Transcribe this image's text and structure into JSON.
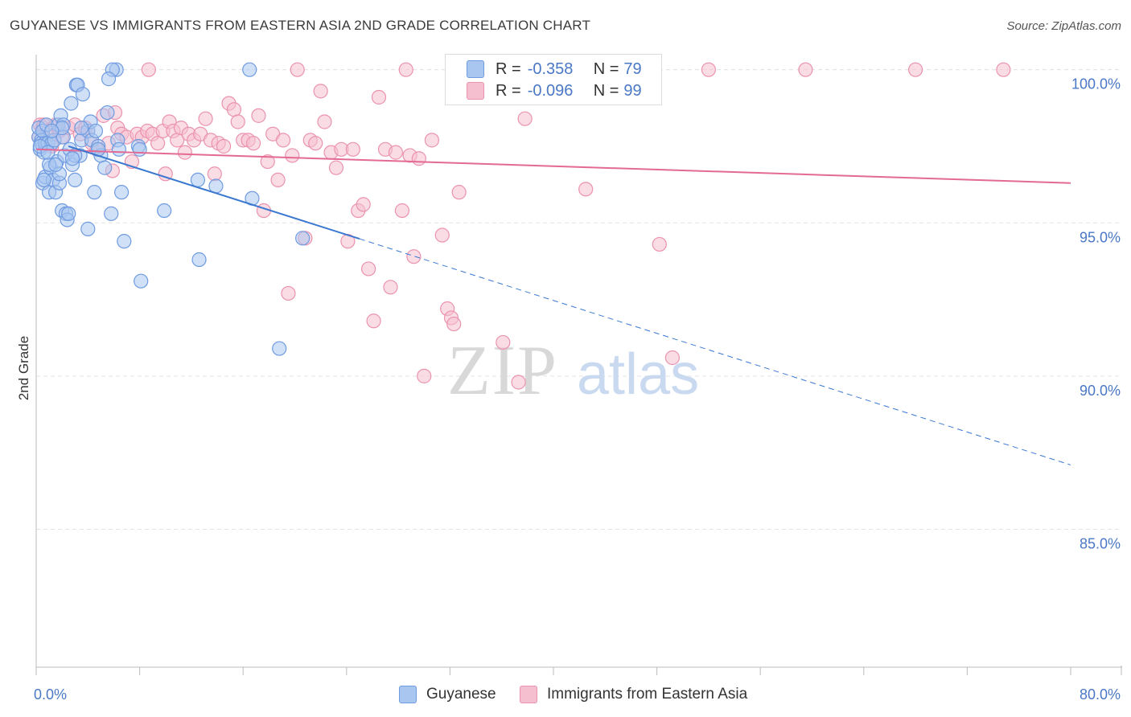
{
  "header": {
    "title": "GUYANESE VS IMMIGRANTS FROM EASTERN ASIA 2ND GRADE CORRELATION CHART",
    "source": "Source: ZipAtlas.com"
  },
  "watermark": {
    "zip": "ZIP",
    "atlas": "atlas"
  },
  "legend": {
    "rows": [
      {
        "r_label": "R =",
        "r_value": "-0.358",
        "n_label": "N =",
        "n_value": "79"
      },
      {
        "r_label": "R =",
        "r_value": "-0.096",
        "n_label": "N =",
        "n_value": "99"
      }
    ]
  },
  "bottom_legend": {
    "series1": "Guyanese",
    "series2": "Immigrants from Eastern Asia"
  },
  "colors": {
    "blue_fill": "#a9c6f0",
    "blue_stroke": "#6f9be0",
    "blue_line": "#3a78d0",
    "pink_fill": "#f6bfd0",
    "pink_stroke": "#eb93ae",
    "pink_line": "#e36a94",
    "axis_text": "#4a78c6",
    "grid": "#e3e3e3"
  },
  "chart_data": {
    "type": "scatter",
    "title": "GUYANESE VS IMMIGRANTS FROM EASTERN ASIA 2ND GRADE CORRELATION CHART",
    "xlabel": "",
    "ylabel": "2nd Grade",
    "xlim": [
      0,
      80
    ],
    "ylim": [
      80.5,
      100.7
    ],
    "x_tick_labels": [
      "0.0%",
      "80.0%"
    ],
    "y_ticks": [
      85,
      90,
      95,
      100
    ],
    "y_tick_labels": [
      "85.0%",
      "90.0%",
      "95.0%",
      "100.0%"
    ],
    "grid": true,
    "series": [
      {
        "name": "Guyanese",
        "R": -0.358,
        "N": 79,
        "trend": {
          "x0": 2.5,
          "y0": 97.5,
          "x_solid_end": 25,
          "x_dash_end": 80,
          "y_dash_end": 87.1
        },
        "points": [
          [
            0.2,
            97.8
          ],
          [
            0.2,
            98.1
          ],
          [
            0.3,
            97.4
          ],
          [
            0.4,
            97.7
          ],
          [
            0.4,
            97.6
          ],
          [
            0.5,
            98.0
          ],
          [
            0.5,
            96.3
          ],
          [
            0.6,
            97.3
          ],
          [
            0.7,
            96.5
          ],
          [
            0.7,
            97.6
          ],
          [
            0.8,
            98.2
          ],
          [
            0.9,
            97.6
          ],
          [
            1.0,
            96.0
          ],
          [
            1.1,
            96.8
          ],
          [
            1.2,
            97.6
          ],
          [
            1.3,
            96.4
          ],
          [
            1.4,
            97.7
          ],
          [
            1.5,
            96.0
          ],
          [
            1.6,
            97.0
          ],
          [
            1.7,
            98.2
          ],
          [
            1.8,
            96.3
          ],
          [
            1.8,
            96.6
          ],
          [
            1.9,
            98.5
          ],
          [
            2.0,
            95.4
          ],
          [
            2.1,
            98.2
          ],
          [
            2.2,
            97.2
          ],
          [
            2.3,
            95.3
          ],
          [
            2.4,
            95.1
          ],
          [
            2.5,
            95.3
          ],
          [
            2.6,
            97.4
          ],
          [
            2.7,
            98.9
          ],
          [
            2.8,
            96.9
          ],
          [
            3.0,
            96.4
          ],
          [
            3.1,
            99.5
          ],
          [
            3.2,
            99.5
          ],
          [
            3.4,
            97.2
          ],
          [
            3.5,
            97.7
          ],
          [
            3.6,
            99.2
          ],
          [
            4.0,
            98.0
          ],
          [
            4.2,
            98.3
          ],
          [
            4.3,
            97.7
          ],
          [
            4.5,
            96.0
          ],
          [
            4.6,
            98.0
          ],
          [
            4.8,
            97.5
          ],
          [
            5.0,
            97.2
          ],
          [
            5.3,
            96.8
          ],
          [
            5.5,
            98.6
          ],
          [
            5.8,
            95.3
          ],
          [
            6.2,
            100.0
          ],
          [
            6.3,
            97.7
          ],
          [
            6.4,
            97.4
          ],
          [
            6.6,
            96.0
          ],
          [
            6.8,
            94.4
          ],
          [
            7.9,
            97.5
          ],
          [
            8.0,
            97.4
          ],
          [
            8.1,
            93.1
          ],
          [
            9.9,
            95.4
          ],
          [
            12.5,
            96.4
          ],
          [
            12.6,
            93.8
          ],
          [
            13.9,
            96.2
          ],
          [
            16.5,
            100.0
          ],
          [
            16.7,
            95.8
          ],
          [
            18.8,
            90.9
          ],
          [
            20.6,
            94.5
          ],
          [
            0.3,
            97.5
          ],
          [
            1.0,
            96.9
          ],
          [
            1.5,
            96.9
          ],
          [
            2.1,
            97.8
          ],
          [
            4.0,
            94.8
          ],
          [
            0.6,
            96.4
          ],
          [
            3.0,
            97.2
          ],
          [
            5.9,
            100.0
          ],
          [
            5.6,
            99.7
          ],
          [
            2.0,
            98.1
          ],
          [
            3.5,
            98.1
          ],
          [
            1.2,
            98.0
          ],
          [
            0.9,
            97.3
          ],
          [
            4.8,
            97.4
          ],
          [
            2.8,
            97.1
          ]
        ]
      },
      {
        "name": "Immigrants from Eastern Asia",
        "R": -0.096,
        "N": 99,
        "trend": {
          "x0": 0,
          "y0": 97.4,
          "x1": 80,
          "y1": 96.3
        },
        "points": [
          [
            0.2,
            97.8
          ],
          [
            0.3,
            98.2
          ],
          [
            0.5,
            98.1
          ],
          [
            0.6,
            98.2
          ],
          [
            0.8,
            97.9
          ],
          [
            1.0,
            98.0
          ],
          [
            1.2,
            97.5
          ],
          [
            1.3,
            98.1
          ],
          [
            1.5,
            98.2
          ],
          [
            1.8,
            98.0
          ],
          [
            2.0,
            97.8
          ],
          [
            2.5,
            98.1
          ],
          [
            3.0,
            98.2
          ],
          [
            3.4,
            97.9
          ],
          [
            3.8,
            98.1
          ],
          [
            4.0,
            98.0
          ],
          [
            4.3,
            97.6
          ],
          [
            4.7,
            97.4
          ],
          [
            5.2,
            98.5
          ],
          [
            5.6,
            97.6
          ],
          [
            5.9,
            96.7
          ],
          [
            6.1,
            98.6
          ],
          [
            6.3,
            98.1
          ],
          [
            6.6,
            97.9
          ],
          [
            7.0,
            97.8
          ],
          [
            7.4,
            97.0
          ],
          [
            7.8,
            97.9
          ],
          [
            8.2,
            97.8
          ],
          [
            8.6,
            98.0
          ],
          [
            9.0,
            97.9
          ],
          [
            9.4,
            97.6
          ],
          [
            9.8,
            98.0
          ],
          [
            10.0,
            96.6
          ],
          [
            10.3,
            98.3
          ],
          [
            10.6,
            98.0
          ],
          [
            10.9,
            97.7
          ],
          [
            11.2,
            98.1
          ],
          [
            11.5,
            97.3
          ],
          [
            11.8,
            97.9
          ],
          [
            12.2,
            97.7
          ],
          [
            12.7,
            97.9
          ],
          [
            13.1,
            98.4
          ],
          [
            13.5,
            97.7
          ],
          [
            13.8,
            96.6
          ],
          [
            14.1,
            97.6
          ],
          [
            14.5,
            97.5
          ],
          [
            14.9,
            98.9
          ],
          [
            15.3,
            98.7
          ],
          [
            15.6,
            98.3
          ],
          [
            16.0,
            97.7
          ],
          [
            16.4,
            97.7
          ],
          [
            16.8,
            97.6
          ],
          [
            17.2,
            98.5
          ],
          [
            17.6,
            95.4
          ],
          [
            17.9,
            97.0
          ],
          [
            18.3,
            97.9
          ],
          [
            18.7,
            96.4
          ],
          [
            19.1,
            97.7
          ],
          [
            19.5,
            92.7
          ],
          [
            19.8,
            97.2
          ],
          [
            20.2,
            100.0
          ],
          [
            20.8,
            94.5
          ],
          [
            21.2,
            97.7
          ],
          [
            21.6,
            97.6
          ],
          [
            22.0,
            99.3
          ],
          [
            22.3,
            98.3
          ],
          [
            22.8,
            97.3
          ],
          [
            23.2,
            96.8
          ],
          [
            23.6,
            97.4
          ],
          [
            24.1,
            94.4
          ],
          [
            24.5,
            97.4
          ],
          [
            24.9,
            95.4
          ],
          [
            25.3,
            95.6
          ],
          [
            25.7,
            93.5
          ],
          [
            26.1,
            91.8
          ],
          [
            26.5,
            99.1
          ],
          [
            27.0,
            97.4
          ],
          [
            27.4,
            92.9
          ],
          [
            27.8,
            97.3
          ],
          [
            28.3,
            95.4
          ],
          [
            28.9,
            97.2
          ],
          [
            29.2,
            93.9
          ],
          [
            29.6,
            97.1
          ],
          [
            30.0,
            90.0
          ],
          [
            30.6,
            97.7
          ],
          [
            31.4,
            94.6
          ],
          [
            31.8,
            92.2
          ],
          [
            32.1,
            91.9
          ],
          [
            32.3,
            91.7
          ],
          [
            32.7,
            96.0
          ],
          [
            36.1,
            91.1
          ],
          [
            37.3,
            89.8
          ],
          [
            37.8,
            98.4
          ],
          [
            42.5,
            96.1
          ],
          [
            43.4,
            100.0
          ],
          [
            48.2,
            94.3
          ],
          [
            49.2,
            90.6
          ],
          [
            52.0,
            100.0
          ],
          [
            59.5,
            100.0
          ]
        ],
        "extra_points_top": [
          [
            68.0,
            100.0
          ],
          [
            74.8,
            100.0
          ],
          [
            8.7,
            100.0
          ],
          [
            28.6,
            100.0
          ]
        ]
      }
    ]
  }
}
